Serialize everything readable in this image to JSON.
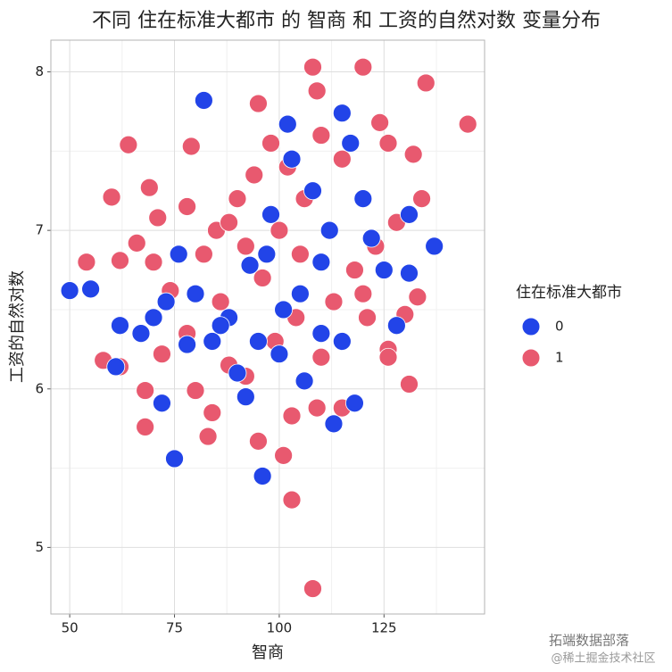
{
  "chart_data": {
    "type": "scatter",
    "title": "不同 住在标准大都市 的 智商 和 工资的自然对数 变量分布",
    "x_label": "智商",
    "y_label": "工资的自然对数",
    "legend_title": "住在标准大都市",
    "xlim": [
      45.5,
      149
    ],
    "xticks": [
      50,
      75,
      100,
      125
    ],
    "xminor": [
      62.5,
      87.5,
      112.5,
      137.5
    ],
    "ylim": [
      4.58,
      8.2
    ],
    "yticks": [
      5,
      6,
      7,
      8
    ],
    "yminor": [
      5.5,
      6.5,
      7.5
    ],
    "grid": true,
    "legend_position": "right",
    "series": [
      {
        "name": "1",
        "color": "#e8596f",
        "x": [
          108,
          103,
          101,
          95,
          83,
          68,
          84,
          109,
          115,
          103,
          131,
          80,
          68,
          62,
          58,
          72,
          78,
          88,
          92,
          126,
          128,
          133,
          121,
          110,
          99,
          86,
          74,
          70,
          66,
          62,
          54,
          60,
          69,
          64,
          79,
          71,
          78,
          85,
          90,
          94,
          98,
          102,
          106,
          110,
          115,
          108,
          120,
          109,
          95,
          135,
          145,
          126,
          132,
          134,
          128,
          123,
          118,
          113,
          105,
          100,
          96,
          92,
          88,
          82,
          104,
          124,
          130,
          120,
          126
        ],
        "values": [
          4.74,
          5.3,
          5.58,
          5.67,
          5.7,
          5.76,
          5.85,
          5.88,
          5.88,
          5.83,
          6.03,
          5.99,
          5.99,
          6.14,
          6.18,
          6.22,
          6.35,
          6.15,
          6.08,
          6.25,
          6.4,
          6.58,
          6.45,
          6.2,
          6.3,
          6.55,
          6.62,
          6.8,
          6.92,
          6.81,
          6.8,
          7.21,
          7.27,
          7.54,
          7.53,
          7.08,
          7.15,
          7.0,
          7.2,
          7.35,
          7.55,
          7.4,
          7.2,
          7.6,
          7.45,
          8.03,
          8.03,
          7.88,
          7.8,
          7.93,
          7.67,
          7.55,
          7.48,
          7.2,
          7.05,
          6.9,
          6.75,
          6.55,
          6.85,
          7.0,
          6.7,
          6.9,
          7.05,
          6.85,
          6.45,
          7.68,
          6.47,
          6.6,
          6.2
        ]
      },
      {
        "name": "0",
        "color": "#2244e8",
        "x": [
          50,
          55,
          82,
          96,
          75,
          137,
          115,
          102,
          113,
          118,
          61,
          62,
          131,
          131,
          117,
          72,
          73,
          67,
          78,
          84,
          90,
          95,
          100,
          105,
          110,
          112,
          120,
          125,
          128,
          106,
          97,
          93,
          88,
          80,
          76,
          70,
          98,
          103,
          108,
          122,
          115,
          101,
          86,
          92,
          110
        ],
        "values": [
          6.62,
          6.63,
          7.82,
          5.45,
          5.56,
          6.9,
          7.74,
          7.67,
          5.78,
          5.91,
          6.14,
          6.4,
          7.1,
          6.73,
          7.55,
          5.91,
          6.55,
          6.35,
          6.28,
          6.3,
          6.1,
          6.3,
          6.22,
          6.6,
          6.8,
          7.0,
          7.2,
          6.75,
          6.4,
          6.05,
          6.85,
          6.78,
          6.45,
          6.6,
          6.85,
          6.45,
          7.1,
          7.45,
          7.25,
          6.95,
          6.3,
          6.5,
          6.4,
          5.95,
          6.35
        ]
      }
    ]
  },
  "watermark": [
    "拓端数据部落",
    "@稀土掘金技术社区"
  ]
}
